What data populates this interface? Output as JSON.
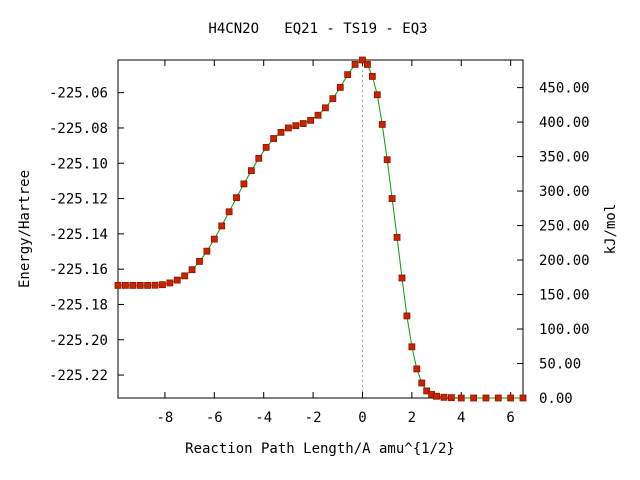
{
  "chart_data": {
    "type": "line",
    "title": "H4CN2O   EQ21 - TS19 - EQ3",
    "xlabel": "Reaction Path Length/A amu^{1/2}",
    "ylabel": "Energy/Hartree",
    "y2label": "kJ/mol",
    "xlim": [
      -9.9,
      6.5
    ],
    "ylim": [
      -225.233,
      -225.0415
    ],
    "y2lim": [
      0,
      490
    ],
    "x_ticks": [
      -8,
      -6,
      -4,
      -2,
      0,
      2,
      4,
      6
    ],
    "x_tick_labels": [
      "-8",
      "-6",
      "-4",
      "-2",
      "0",
      "2",
      "4",
      "6"
    ],
    "y_ticks": [
      -225.22,
      -225.2,
      -225.18,
      -225.16,
      -225.14,
      -225.12,
      -225.1,
      -225.08,
      -225.06
    ],
    "y_tick_labels": [
      "-225.22",
      "-225.20",
      "-225.18",
      "-225.16",
      "-225.14",
      "-225.12",
      "-225.10",
      "-225.08",
      "-225.06"
    ],
    "y2_ticks": [
      0,
      50,
      100,
      150,
      200,
      250,
      300,
      350,
      400,
      450
    ],
    "y2_tick_labels": [
      "0.00",
      "50.00",
      "100.00",
      "150.00",
      "200.00",
      "250.00",
      "300.00",
      "350.00",
      "400.00",
      "450.00"
    ],
    "ts_marker_x": 0,
    "grid": false,
    "colors": {
      "line": "#00a000",
      "marker": "#cc2200",
      "ts_line": "#a0a0a0"
    },
    "series": [
      {
        "x": [
          -9.9,
          -9.6,
          -9.3,
          -9.0,
          -8.7,
          -8.4,
          -8.1,
          -7.8,
          -7.5,
          -7.2,
          -6.9,
          -6.6,
          -6.3,
          -6.0,
          -5.7,
          -5.4,
          -5.1,
          -4.8,
          -4.5,
          -4.2,
          -3.9,
          -3.6,
          -3.3,
          -3.0,
          -2.7,
          -2.4,
          -2.1,
          -1.8,
          -1.5,
          -1.2,
          -0.9,
          -0.6,
          -0.3,
          0.0,
          0.2,
          0.4,
          0.6,
          0.8,
          1.0,
          1.2,
          1.4,
          1.6,
          1.8,
          2.0,
          2.2,
          2.4,
          2.6,
          2.8,
          3.0,
          3.3,
          3.6,
          4.0,
          4.5,
          5.0,
          5.5,
          6.0,
          6.5
        ],
        "y": [
          -225.1692,
          -225.1692,
          -225.1692,
          -225.1692,
          -225.1692,
          -225.1691,
          -225.1688,
          -225.1678,
          -225.1662,
          -225.1638,
          -225.1603,
          -225.1556,
          -225.1498,
          -225.143,
          -225.1355,
          -225.1275,
          -225.1195,
          -225.1117,
          -225.1042,
          -225.0972,
          -225.091,
          -225.086,
          -225.0825,
          -225.08,
          -225.0787,
          -225.0775,
          -225.0757,
          -225.0728,
          -225.0686,
          -225.0634,
          -225.057,
          -225.0498,
          -225.044,
          -225.0415,
          -225.044,
          -225.0508,
          -225.0612,
          -225.078,
          -225.098,
          -225.12,
          -225.142,
          -225.165,
          -225.1865,
          -225.204,
          -225.2165,
          -225.2245,
          -225.229,
          -225.231,
          -225.232,
          -225.2326,
          -225.2328,
          -225.233,
          -225.233,
          -225.233,
          -225.233,
          -225.233,
          -225.233
        ]
      }
    ]
  }
}
